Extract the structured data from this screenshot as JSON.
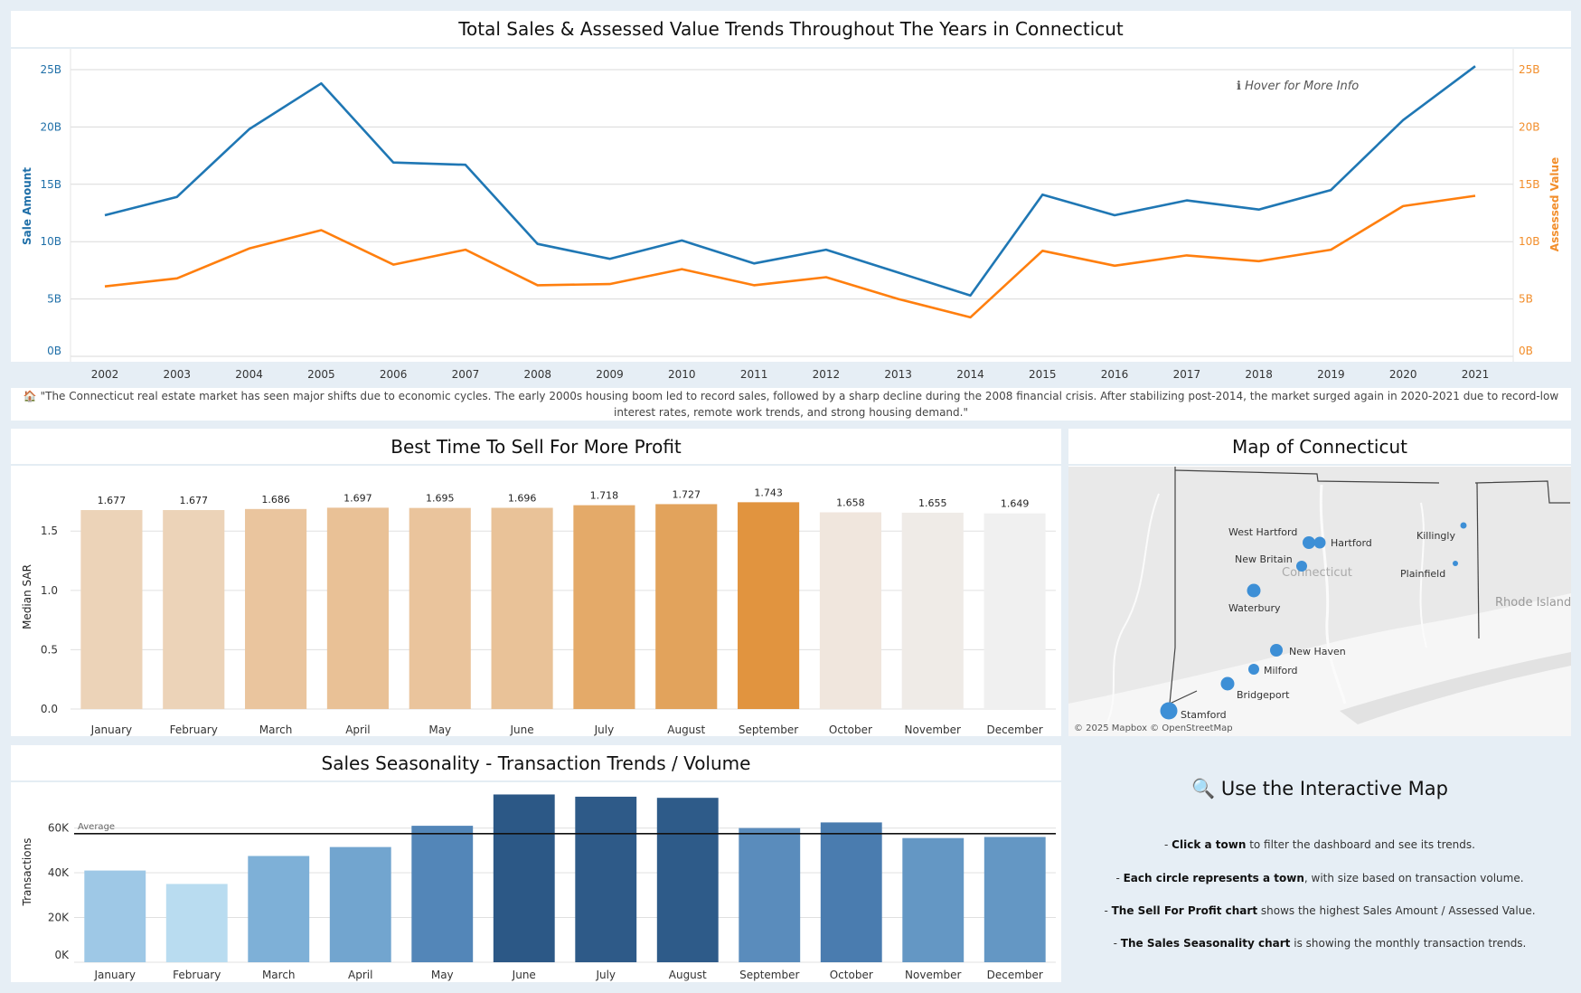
{
  "top": {
    "title": "Total Sales & Assessed Value Trends Throughout The Years in Connecticut",
    "hover_hint": "ℹ Hover for More Info",
    "left_axis_label": "Sale Amount",
    "right_axis_label": "Assessed Value",
    "note": "🏠 \"The Connecticut real estate market has seen major shifts due to economic cycles. The early 2000s housing boom led to record sales, followed by a sharp decline during the 2008 financial crisis. After stabilizing post-2014, the market surged again in 2020-2021 due to record-low interest rates, remote work trends, and strong housing demand.\""
  },
  "profit": {
    "title": "Best Time To Sell For More Profit",
    "ylabel": "Median SAR"
  },
  "season": {
    "title": "Sales Seasonality - Transaction Trends / Volume",
    "ylabel": "Transactions",
    "avg_label": "Average"
  },
  "map": {
    "title": "Map of Connecticut",
    "state_label": "Connecticut",
    "neighbor_label": "Rhode Island",
    "credit": "© 2025 Mapbox © OpenStreetMap",
    "towns": [
      "West Hartford",
      "Hartford",
      "New Britain",
      "Killingly",
      "Plainfield",
      "Waterbury",
      "New Haven",
      "Milford",
      "Bridgeport",
      "Stamford"
    ]
  },
  "help": {
    "title": "🔍 Use the Interactive Map",
    "l1_b": "Click a town",
    "l1": " to filter the dashboard and see its trends.",
    "l2_b": "Each circle represents a town",
    "l2": ", with size based on transaction volume.",
    "l3_b": "The Sell For Profit chart",
    "l3": " shows the highest Sales Amount / Assessed Value.",
    "l4_b": "The Sales Seasonality chart",
    "l4": " is showing the monthly transaction trends."
  },
  "colors": {
    "sales": "#1f77b4",
    "assessed": "#ff7f0e",
    "axis_blue": "#1f6fa8",
    "axis_orange": "#f28e2b"
  },
  "chart_data": [
    {
      "type": "line",
      "title": "Total Sales & Assessed Value Trends Throughout The Years in Connecticut",
      "x": [
        "2002",
        "2003",
        "2004",
        "2005",
        "2006",
        "2007",
        "2008",
        "2009",
        "2010",
        "2011",
        "2012",
        "2013",
        "2014",
        "2015",
        "2016",
        "2017",
        "2018",
        "2019",
        "2020",
        "2021"
      ],
      "series": [
        {
          "name": "Sale Amount",
          "axis": "left",
          "values": [
            12.3,
            13.9,
            19.8,
            23.8,
            16.9,
            16.7,
            9.8,
            8.5,
            10.1,
            8.1,
            9.3,
            7.3,
            5.3,
            14.1,
            12.3,
            13.6,
            12.8,
            14.5,
            20.6,
            25.3
          ]
        },
        {
          "name": "Assessed Value",
          "axis": "left",
          "values": [
            6.1,
            6.8,
            9.4,
            11.0,
            8.0,
            9.3,
            6.2,
            6.3,
            7.6,
            6.2,
            6.9,
            5.0,
            3.4,
            9.2,
            7.9,
            8.8,
            8.3,
            9.3,
            13.1,
            14.0
          ]
        }
      ],
      "yunit": "B",
      "yticks": [
        "0B",
        "5B",
        "10B",
        "15B",
        "20B",
        "25B"
      ],
      "ylim": [
        0,
        26
      ],
      "ylabel": "Sale Amount",
      "y2label": "Assessed Value"
    },
    {
      "type": "bar",
      "title": "Best Time To Sell For More Profit",
      "categories": [
        "January",
        "February",
        "March",
        "April",
        "May",
        "June",
        "July",
        "August",
        "September",
        "October",
        "November",
        "December"
      ],
      "values": [
        1.677,
        1.677,
        1.686,
        1.697,
        1.695,
        1.696,
        1.718,
        1.727,
        1.743,
        1.658,
        1.655,
        1.649
      ],
      "bar_colors": [
        "#ecd3b8",
        "#ecd3b8",
        "#eac59e",
        "#e9c196",
        "#eac49c",
        "#e9c298",
        "#e4aa69",
        "#e2a35c",
        "#e1943f",
        "#f0e6dd",
        "#efebe7",
        "#f0f0f0"
      ],
      "ylabel": "Median SAR",
      "yticks": [
        "0.0",
        "0.5",
        "1.0",
        "1.5"
      ],
      "ylim": [
        0,
        1.86
      ]
    },
    {
      "type": "bar",
      "title": "Sales Seasonality - Transaction Trends / Volume",
      "categories": [
        "January",
        "February",
        "March",
        "April",
        "May",
        "June",
        "July",
        "August",
        "September",
        "October",
        "November",
        "December"
      ],
      "values": [
        41000,
        35000,
        47500,
        51500,
        61000,
        75000,
        74000,
        73500,
        60000,
        62500,
        55500,
        56000
      ],
      "bar_colors": [
        "#9ec8e6",
        "#b9dcf0",
        "#7eb0d7",
        "#72a5cf",
        "#5386b8",
        "#2c5886",
        "#2e5a88",
        "#2e5b89",
        "#5a8cbc",
        "#4a7caf",
        "#6497c4",
        "#6497c4"
      ],
      "average": 57500,
      "ylabel": "Transactions",
      "yticks": [
        "0K",
        "20K",
        "40K",
        "60K"
      ],
      "ylim": [
        0,
        79000
      ]
    }
  ]
}
